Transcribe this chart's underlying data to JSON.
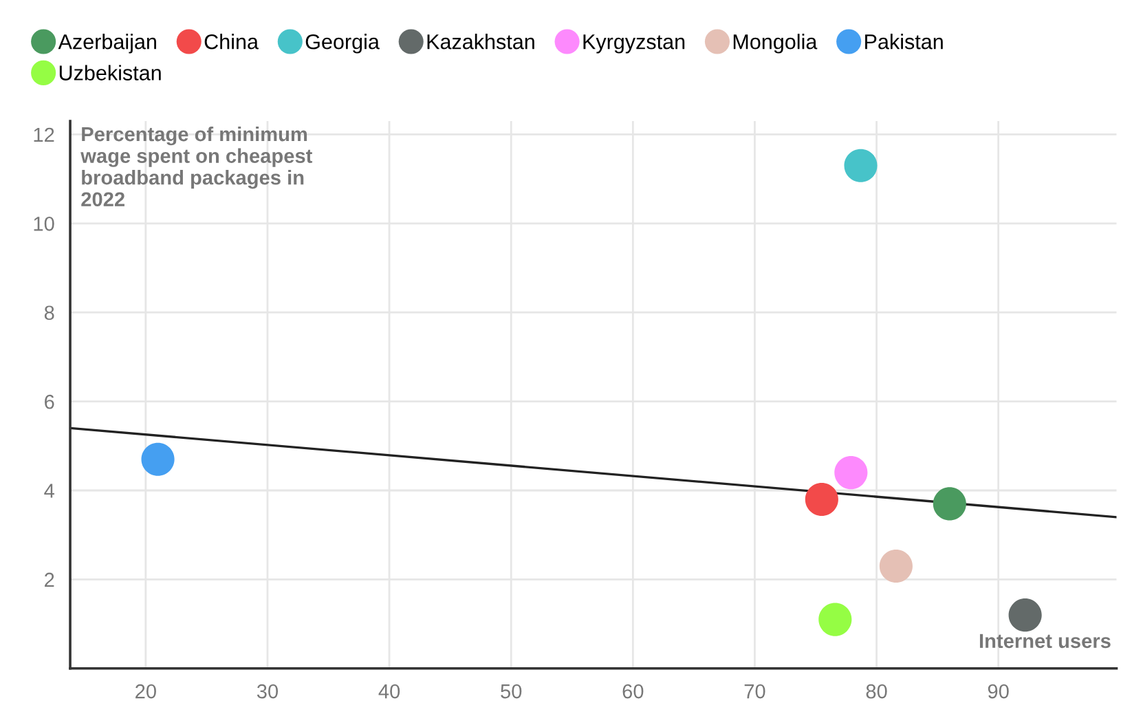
{
  "chart_data": {
    "type": "scatter",
    "xlabel": "Internet users",
    "ylabel": "Percentage of minimum wage spent on cheapest broadband packages in 2022",
    "series": [
      {
        "name": "Azerbaijan",
        "color": "#4a9a5f",
        "x": [
          86.0
        ],
        "values": [
          3.7
        ]
      },
      {
        "name": "China",
        "color": "#f24a4a",
        "x": [
          75.5
        ],
        "values": [
          3.8
        ]
      },
      {
        "name": "Georgia",
        "color": "#47c3c9",
        "x": [
          78.7
        ],
        "values": [
          11.3
        ]
      },
      {
        "name": "Kazakhstan",
        "color": "#636a69",
        "x": [
          92.2
        ],
        "values": [
          1.2
        ]
      },
      {
        "name": "Kyrgyzstan",
        "color": "#fd8afd",
        "x": [
          77.9
        ],
        "values": [
          4.4
        ]
      },
      {
        "name": "Mongolia",
        "color": "#e5c0b5",
        "x": [
          81.6
        ],
        "values": [
          2.3
        ]
      },
      {
        "name": "Pakistan",
        "color": "#459ff1",
        "x": [
          21.0
        ],
        "values": [
          4.7
        ]
      },
      {
        "name": "Uzbekistan",
        "color": "#95fd44",
        "x": [
          76.6
        ],
        "values": [
          1.1
        ]
      },
      {
        "type": "line",
        "color": "#222222",
        "x": [
          13.8,
          99.7
        ],
        "values": [
          5.4,
          3.4
        ],
        "marker": "none"
      }
    ],
    "xlim": [
      13.8,
      99.7
    ],
    "ylim": [
      0,
      12.3
    ],
    "xticks": [
      20,
      30,
      40,
      50,
      60,
      70,
      80,
      90
    ],
    "yticks": [
      2,
      4,
      6,
      8,
      10,
      12
    ],
    "grid": true,
    "legend": "top",
    "marker": "circle"
  }
}
